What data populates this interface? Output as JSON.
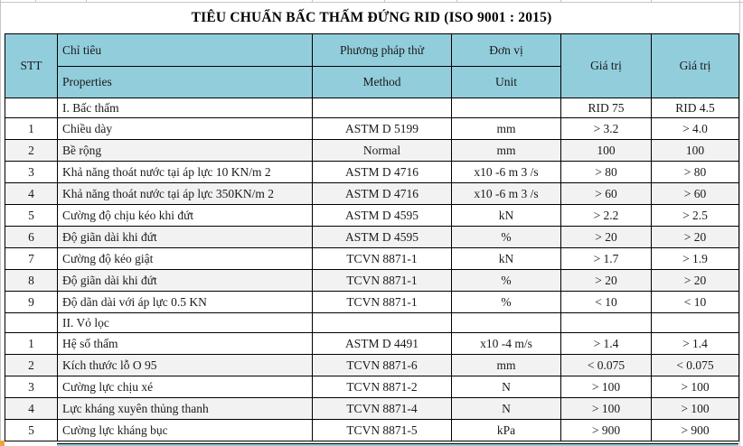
{
  "title": "TIÊU CHUẨN BẤC THẤM ĐỨNG RID (ISO 9001 : 2015)",
  "header": {
    "stt": "STT",
    "property_vi": "Chỉ tiêu",
    "property_en": "Properties",
    "method_vi": "Phương pháp thử",
    "method_en": "Method",
    "unit_vi": "Đơn vị",
    "unit_en": "Unit",
    "value_col1": "Giá trị",
    "value_col2": "Giá trị"
  },
  "sections": [
    {
      "label": "I. Bấc thấm",
      "value1_header": "RID 75",
      "value2_header": "RID 4.5",
      "rows": [
        {
          "stt": "1",
          "property": "Chiều dày",
          "method": "ASTM D 5199",
          "unit": "mm",
          "value1": "> 3.2",
          "value2": "> 4.0"
        },
        {
          "stt": "2",
          "property": "Bề rộng",
          "method": "Normal",
          "unit": "mm",
          "value1": "100",
          "value2": "100"
        },
        {
          "stt": "3",
          "property": "Khả năng thoát nước tại áp lực 10 KN/m 2",
          "method": "ASTM D 4716",
          "unit": "x10 -6 m 3 /s",
          "value1": "> 80",
          "value2": "> 80"
        },
        {
          "stt": "4",
          "property": "Khả năng thoát nước tại áp lực 350KN/m 2",
          "method": "ASTM D 4716",
          "unit": "x10 -6 m 3 /s",
          "value1": "> 60",
          "value2": "> 60"
        },
        {
          "stt": "5",
          "property": "Cường độ chịu kéo khi đứt",
          "method": "ASTM D 4595",
          "unit": "kN",
          "value1": "> 2.2",
          "value2": "> 2.5"
        },
        {
          "stt": "6",
          "property": "Độ giãn dài khi đứt",
          "method": "ASTM D 4595",
          "unit": "%",
          "value1": "> 20",
          "value2": "> 20"
        },
        {
          "stt": "7",
          "property": "Cường độ kéo giật",
          "method": "TCVN 8871-1",
          "unit": "kN",
          "value1": "> 1.7",
          "value2": "> 1.9"
        },
        {
          "stt": "8",
          "property": "Độ giãn dài khi đứt",
          "method": "TCVN 8871-1",
          "unit": "%",
          "value1": "> 20",
          "value2": "> 20"
        },
        {
          "stt": "9",
          "property": "Độ dãn dài với áp lực 0.5 KN",
          "method": "TCVN 8871-1",
          "unit": "%",
          "value1": "< 10",
          "value2": "< 10"
        }
      ]
    },
    {
      "label": "II. Vỏ lọc",
      "value1_header": "",
      "value2_header": "",
      "rows": [
        {
          "stt": "1",
          "property": "Hệ số thấm",
          "method": "ASTM D 4491",
          "unit": "x10 -4 m/s",
          "value1": "> 1.4",
          "value2": "> 1.4"
        },
        {
          "stt": "2",
          "property": "Kích thước lỗ O 95",
          "method": "TCVN 8871-6",
          "unit": "mm",
          "value1": "< 0.075",
          "value2": "< 0.075"
        },
        {
          "stt": "3",
          "property": "Cường lực chịu xé",
          "method": "TCVN 8871-2",
          "unit": "N",
          "value1": "> 100",
          "value2": "> 100"
        },
        {
          "stt": "4",
          "property": "Lực kháng xuyên thủng thanh",
          "method": "TCVN 8871-4",
          "unit": "N",
          "value1": "> 100",
          "value2": "> 100"
        },
        {
          "stt": "5",
          "property": "Cường lực kháng bục",
          "method": "TCVN 8871-5",
          "unit": "kPa",
          "value1": "> 900",
          "value2": "> 900"
        }
      ]
    }
  ],
  "colors": {
    "header_bg": "#92CDDC",
    "stripe_bg": "#F2F2F2",
    "border": "#000000",
    "gridline": "#C6C6C6",
    "corner_marker": "#EBA63C"
  }
}
